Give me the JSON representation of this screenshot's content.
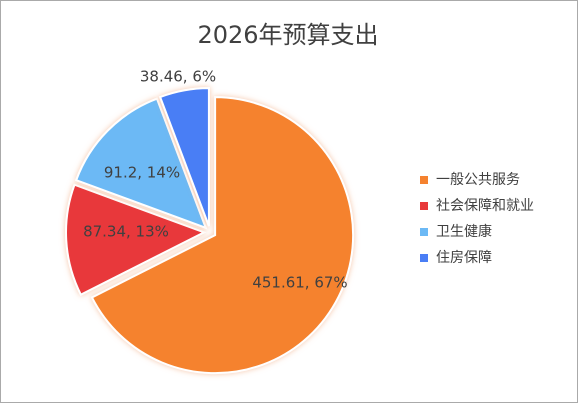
{
  "chart_data": {
    "type": "pie",
    "title": "2026年预算支出",
    "categories": [
      "一般公共服务",
      "社会保障和就业",
      "卫生健康",
      "住房保障"
    ],
    "values": [
      451.61,
      87.34,
      91.2,
      38.46
    ],
    "value_labels": [
      "451.61, 67%",
      "87.34, 13%",
      "91.2, 14%",
      "38.46, 6%"
    ],
    "colors": [
      "#f5822f",
      "#e8393a",
      "#6cb9f5",
      "#4a7ef5"
    ],
    "legend": "right"
  }
}
